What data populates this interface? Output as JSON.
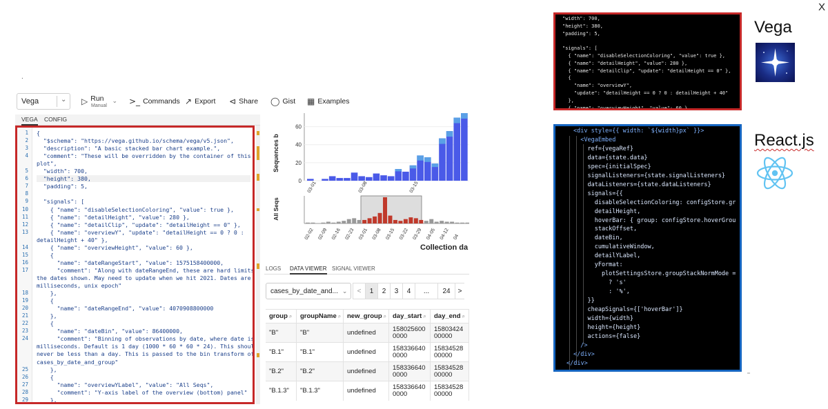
{
  "close_label": "X",
  "dot_mark": ".",
  "toolbar": {
    "mode": "Vega",
    "run_label": "Run",
    "run_sub": "Manual",
    "commands": "Commands",
    "export": "Export",
    "share": "Share",
    "gist": "Gist",
    "examples": "Examples"
  },
  "editor_tabs": [
    "VEGA",
    "CONFIG"
  ],
  "editor_lines": [
    {
      "n": "1",
      "t": "{"
    },
    {
      "n": "2",
      "t": "  \"$schema\": \"https://vega.github.io/schema/vega/v5.json\","
    },
    {
      "n": "3",
      "t": "  \"description\": \"A basic stacked bar chart example.\","
    },
    {
      "n": "4",
      "t": "  \"comment\": \"These will be overridden by the container of this vega"
    },
    {
      "n": "",
      "t": "plot\","
    },
    {
      "n": "5",
      "t": "  \"width\": 700,"
    },
    {
      "n": "6",
      "t": "  \"height\": 380,"
    },
    {
      "n": "7",
      "t": "  \"padding\": 5,"
    },
    {
      "n": "8",
      "t": ""
    },
    {
      "n": "9",
      "t": "  \"signals\": ["
    },
    {
      "n": "10",
      "t": "    { \"name\": \"disableSelectionColoring\", \"value\": true },"
    },
    {
      "n": "11",
      "t": "    { \"name\": \"detailHeight\", \"value\": 280 },"
    },
    {
      "n": "12",
      "t": "    { \"name\": \"detailClip\", \"update\": \"detailHeight == 0\" },"
    },
    {
      "n": "13",
      "t": "    { \"name\": \"overviewY\", \"update\": \"detailHeight == 0 ? 0 :"
    },
    {
      "n": "",
      "t": "detailHeight + 40\" },"
    },
    {
      "n": "14",
      "t": "    { \"name\": \"overviewHeight\", \"value\": 60 },"
    },
    {
      "n": "15",
      "t": "    {"
    },
    {
      "n": "16",
      "t": "      \"name\": \"dateRangeStart\", \"value\": 1575158400000,"
    },
    {
      "n": "17",
      "t": "      \"comment\": \"Along with dateRangeEnd, these are hard limits on"
    },
    {
      "n": "",
      "t": "the dates shown. May need to update when we hit 2021. Dates are in"
    },
    {
      "n": "",
      "t": "milliseconds, unix epoch\""
    },
    {
      "n": "18",
      "t": "    },"
    },
    {
      "n": "19",
      "t": "    {"
    },
    {
      "n": "20",
      "t": "      \"name\": \"dateRangeEnd\", \"value\": 4070908800000"
    },
    {
      "n": "21",
      "t": "    },"
    },
    {
      "n": "22",
      "t": "    {"
    },
    {
      "n": "23",
      "t": "      \"name\": \"dateBin\", \"value\": 86400000,"
    },
    {
      "n": "24",
      "t": "      \"comment\": \"Binning of observations by date, where date is in"
    },
    {
      "n": "",
      "t": "milliseconds. Default is 1 day (1000 * 60 * 60 * 24). This should"
    },
    {
      "n": "",
      "t": "never be less than a day. This is passed to the bin transform of"
    },
    {
      "n": "",
      "t": "cases_by_date_and_group\""
    },
    {
      "n": "25",
      "t": "    },"
    },
    {
      "n": "26",
      "t": "    {"
    },
    {
      "n": "27",
      "t": "      \"name\": \"overviewYLabel\", \"value\": \"All Seqs\","
    },
    {
      "n": "28",
      "t": "      \"comment\": \"Y-axis label of the overview (bottom) panel\""
    },
    {
      "n": "29",
      "t": "    },"
    }
  ],
  "chart": {
    "detail_ylabel": "Sequences b",
    "detail_yticks": [
      "60",
      "40",
      "20",
      "0"
    ],
    "detail_xticks": [
      "03-01",
      "03-08",
      "03-15"
    ],
    "overview_ylabel": "All Seqs",
    "overview_xticks": [
      "02-02",
      "02-09",
      "02-16",
      "02-23",
      "03-01",
      "03-08",
      "03-15",
      "03-22",
      "03-29",
      "04-05",
      "04-12",
      "04"
    ],
    "xlabel": "Collection da"
  },
  "chart_data": {
    "type": "bar",
    "detail_ylim": [
      0,
      75
    ],
    "detail_bars": [
      2,
      0,
      2,
      5,
      3,
      3,
      9,
      5,
      4,
      8,
      6,
      5,
      13,
      10,
      17,
      28,
      26,
      19,
      47,
      55,
      70,
      75
    ],
    "overview_bars": [
      1,
      1,
      0,
      1,
      2,
      1,
      2,
      3,
      5,
      6,
      4,
      4,
      6,
      8,
      12,
      30,
      9,
      4,
      3,
      5,
      7,
      6,
      4,
      3,
      5,
      2,
      3,
      2,
      2,
      1,
      1,
      1
    ]
  },
  "log_tabs": [
    "LOGS",
    "DATA VIEWER",
    "SIGNAL VIEWER"
  ],
  "dataset_select": "cases_by_date_and...",
  "pager": [
    "<",
    "1",
    "2",
    "3",
    "4",
    "...",
    "24",
    ">"
  ],
  "table": {
    "headers": [
      "group",
      "groupName",
      "new_group",
      "day_start",
      "day_end"
    ],
    "rows": [
      [
        "\"B\"",
        "\"B\"",
        "undefined",
        "158025600 0000",
        "15803424 00000"
      ],
      [
        "\"B.1\"",
        "\"B.1\"",
        "undefined",
        "158336640 0000",
        "15834528 00000"
      ],
      [
        "\"B.2\"",
        "\"B.2\"",
        "undefined",
        "158336640 0000",
        "15834528 00000"
      ],
      [
        "\"B.1.3\"",
        "\"B.1.3\"",
        "undefined",
        "158336640 0000",
        "15834528 00000"
      ]
    ]
  },
  "vega_code": [
    "\"width\": 700,",
    "\"height\": 380,",
    "\"padding\": 5,",
    "",
    "\"signals\": [",
    "  { \"name\": \"disableSelectionColoring\", \"value\": true },",
    "  { \"name\": \"detailHeight\", \"value\": 280 },",
    "  { \"name\": \"detailClip\", \"update\": \"detailHeight == 0\" },",
    "  {",
    "    \"name\": \"overviewY\",",
    "    \"update\": \"detailHeight == 0 ? 0 : detailHeight + 40\"",
    "  },",
    "  { \"name\": \"overviewHeight\", \"value\": 60 },"
  ],
  "react_code": [
    "<div style={{ width: `${width}px` }}>",
    "  <VegaEmbed",
    "    ref={vegaRef}",
    "    data={state.data}",
    "    spec={initialSpec}",
    "    signalListeners={state.signalListeners}",
    "    dataListeners={state.dataListeners}",
    "    signals={{",
    "      disableSelectionColoring: configStore.gr",
    "      detailHeight,",
    "      hoverBar: { group: configStore.hoverGrou",
    "      stackOffset,",
    "      dateBin,",
    "      cumulativeWindow,",
    "      detailYLabel,",
    "      yFormat:",
    "        plotSettingsStore.groupStackNormMode =",
    "          ? 's'",
    "          : '%',",
    "    }}",
    "    cheapSignals={['hoverBar']}",
    "    width={width}",
    "    height={height}",
    "    actions={false}",
    "  />",
    "</div>",
    "</div>"
  ],
  "labels": {
    "vega": "Vega",
    "react": "React.js"
  },
  "colors": {
    "highlight_border": "#c62828",
    "react_border": "#1565c0",
    "bar_blue": "#4a5ae8",
    "bar_light": "#5aa0e6",
    "bar_red": "#c0392b"
  }
}
